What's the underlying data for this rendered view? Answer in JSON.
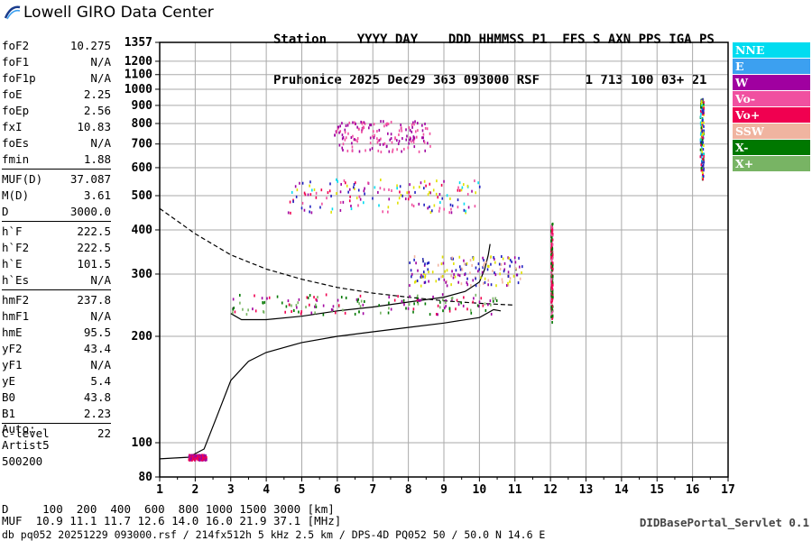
{
  "logo": {
    "text": "Lowell GIRO Data Center"
  },
  "header": {
    "line1": "Station    YYYY DAY    DDD HHMMSS P1  FFS S AXN PPS IGA PS",
    "line2": "Pruhonice 2025 Dec29 363 093000 RSF      1 713 100 03+ 21"
  },
  "params": [
    {
      "group": [
        {
          "label": "foF2",
          "value": "10.275"
        },
        {
          "label": "foF1",
          "value": "N/A"
        },
        {
          "label": "foF1p",
          "value": "N/A"
        },
        {
          "label": "foE",
          "value": "2.25"
        },
        {
          "label": "foEp",
          "value": "2.56"
        },
        {
          "label": "fxI",
          "value": "10.83"
        },
        {
          "label": "foEs",
          "value": "N/A"
        },
        {
          "label": "fmin",
          "value": "1.88"
        }
      ]
    },
    {
      "group": [
        {
          "label": "MUF(D)",
          "value": "37.087"
        },
        {
          "label": "M(D)",
          "value": "3.61"
        },
        {
          "label": "D",
          "value": "3000.0"
        }
      ]
    },
    {
      "group": [
        {
          "label": "h`F",
          "value": "222.5"
        },
        {
          "label": "h`F2",
          "value": "222.5"
        },
        {
          "label": "h`E",
          "value": "101.5"
        },
        {
          "label": "h`Es",
          "value": "N/A"
        }
      ]
    },
    {
      "group": [
        {
          "label": "hmF2",
          "value": "237.8"
        },
        {
          "label": "hmF1",
          "value": "N/A"
        },
        {
          "label": "hmE",
          "value": "95.5"
        },
        {
          "label": "yF2",
          "value": "43.4"
        },
        {
          "label": "yF1",
          "value": "N/A"
        },
        {
          "label": "yE",
          "value": "5.4"
        },
        {
          "label": "B0",
          "value": "43.8"
        },
        {
          "label": "B1",
          "value": "2.23"
        }
      ]
    },
    {
      "group": [
        {
          "label": "C-level",
          "value": "22"
        }
      ]
    }
  ],
  "auto": {
    "line1": "Auto:",
    "line2": "Artist5",
    "line3": "500200"
  },
  "legend": [
    {
      "label": "NNE",
      "color": "#00dcf0"
    },
    {
      "label": "E",
      "color": "#3ca0f0"
    },
    {
      "label": "W",
      "color": "#a000a0"
    },
    {
      "label": "Vo-",
      "color": "#f050a0"
    },
    {
      "label": "Vo+",
      "color": "#f00050"
    },
    {
      "label": "SSW",
      "color": "#f0b4a0"
    },
    {
      "label": "X-",
      "color": "#007800"
    },
    {
      "label": "X+",
      "color": "#78b464"
    }
  ],
  "bottom": {
    "line1": "D     100  200  400  600  800 1000 1500 3000 [km]",
    "line2": "MUF  10.9 11.1 11.7 12.6 14.0 16.0 21.9 37.1 [MHz]",
    "line3": "db pq052 20251229 093000.rsf / 214fx512h 5 kHz 2.5 km / DPS-4D PQ052 50 / 50.0 N 14.6 E",
    "servlet": "DIDBasePortal_Servlet 0.1"
  },
  "chart_data": {
    "type": "scatter",
    "title": "",
    "xlabel": "",
    "ylabel": "",
    "xlim": [
      1,
      17
    ],
    "ylim": [
      80,
      1357
    ],
    "x_scale": "linear",
    "y_scale": "log",
    "x_ticks": [
      "1",
      "2",
      "3",
      "4",
      "5",
      "6",
      "7",
      "8",
      "9",
      "10",
      "11",
      "12",
      "13",
      "14",
      "15",
      "16",
      "17"
    ],
    "y_ticks": [
      "80",
      "100",
      "200",
      "300",
      "400",
      "500",
      "600",
      "700",
      "800",
      "900",
      "1000",
      "1100",
      "1200",
      "1357"
    ],
    "grid": true,
    "legend_position": "right",
    "series": [
      {
        "kind": "line",
        "style": "solid",
        "points": [
          [
            1,
            90
          ],
          [
            1.8,
            91
          ],
          [
            2.25,
            96
          ],
          [
            2.6,
            118
          ],
          [
            3.0,
            150
          ],
          [
            3.5,
            170
          ],
          [
            4,
            180
          ],
          [
            5,
            192
          ],
          [
            6,
            200
          ],
          [
            7,
            206
          ],
          [
            8,
            212
          ],
          [
            9,
            218
          ],
          [
            10,
            226
          ],
          [
            10.4,
            238
          ],
          [
            10.6,
            236
          ]
        ]
      },
      {
        "kind": "line",
        "style": "solid",
        "points": [
          [
            3.0,
            232
          ],
          [
            3.3,
            223
          ],
          [
            4,
            223
          ],
          [
            5,
            228
          ],
          [
            6,
            236
          ],
          [
            7,
            242
          ],
          [
            8,
            250
          ],
          [
            9,
            258
          ],
          [
            9.6,
            268
          ],
          [
            10,
            285
          ],
          [
            10.15,
            310
          ],
          [
            10.25,
            340
          ],
          [
            10.3,
            365
          ]
        ]
      },
      {
        "kind": "line",
        "style": "dashed",
        "points": [
          [
            1,
            460
          ],
          [
            2,
            390
          ],
          [
            3,
            340
          ],
          [
            4,
            310
          ],
          [
            5,
            290
          ],
          [
            6,
            275
          ],
          [
            7,
            265
          ],
          [
            8,
            258
          ],
          [
            9,
            252
          ],
          [
            10,
            248
          ],
          [
            11,
            245
          ]
        ]
      },
      {
        "kind": "cluster",
        "name_hint": "F2 low",
        "x": [
          3,
          10.5
        ],
        "y": [
          232,
          265
        ],
        "colors": [
          "#f00050",
          "#a000a0",
          "#007800",
          "#78b464"
        ]
      },
      {
        "kind": "cluster",
        "name_hint": "F2 high",
        "x": [
          4.6,
          10
        ],
        "y": [
          450,
          560
        ],
        "colors": [
          "#a000a0",
          "#2020c0",
          "#f00050",
          "#f050a0",
          "#00dcf0",
          "#e0e000"
        ]
      },
      {
        "kind": "cluster",
        "name_hint": "multi",
        "x": [
          5.9,
          8.6
        ],
        "y": [
          670,
          820
        ],
        "colors": [
          "#a000a0",
          "#f050a0"
        ]
      },
      {
        "kind": "cluster",
        "name_hint": "2F rising",
        "x": [
          8,
          11.2
        ],
        "y": [
          280,
          340
        ],
        "colors": [
          "#a000a0",
          "#2020c0",
          "#f0b4a0",
          "#e0e000"
        ]
      },
      {
        "kind": "cluster",
        "name_hint": "E layer",
        "x": [
          1.8,
          2.3
        ],
        "y": [
          90,
          93
        ],
        "colors": [
          "#f00050",
          "#a000a0"
        ]
      },
      {
        "kind": "cluster",
        "name_hint": "spur 16.2",
        "x": [
          16.2,
          16.3
        ],
        "y": [
          560,
          950
        ],
        "colors": [
          "#e0e000",
          "#00dcf0",
          "#2020c0",
          "#f00050",
          "#007800"
        ]
      },
      {
        "kind": "cluster",
        "name_hint": "spur 12",
        "x": [
          12,
          12.05
        ],
        "y": [
          220,
          420
        ],
        "colors": [
          "#007800",
          "#f050a0",
          "#f00050"
        ]
      }
    ]
  }
}
